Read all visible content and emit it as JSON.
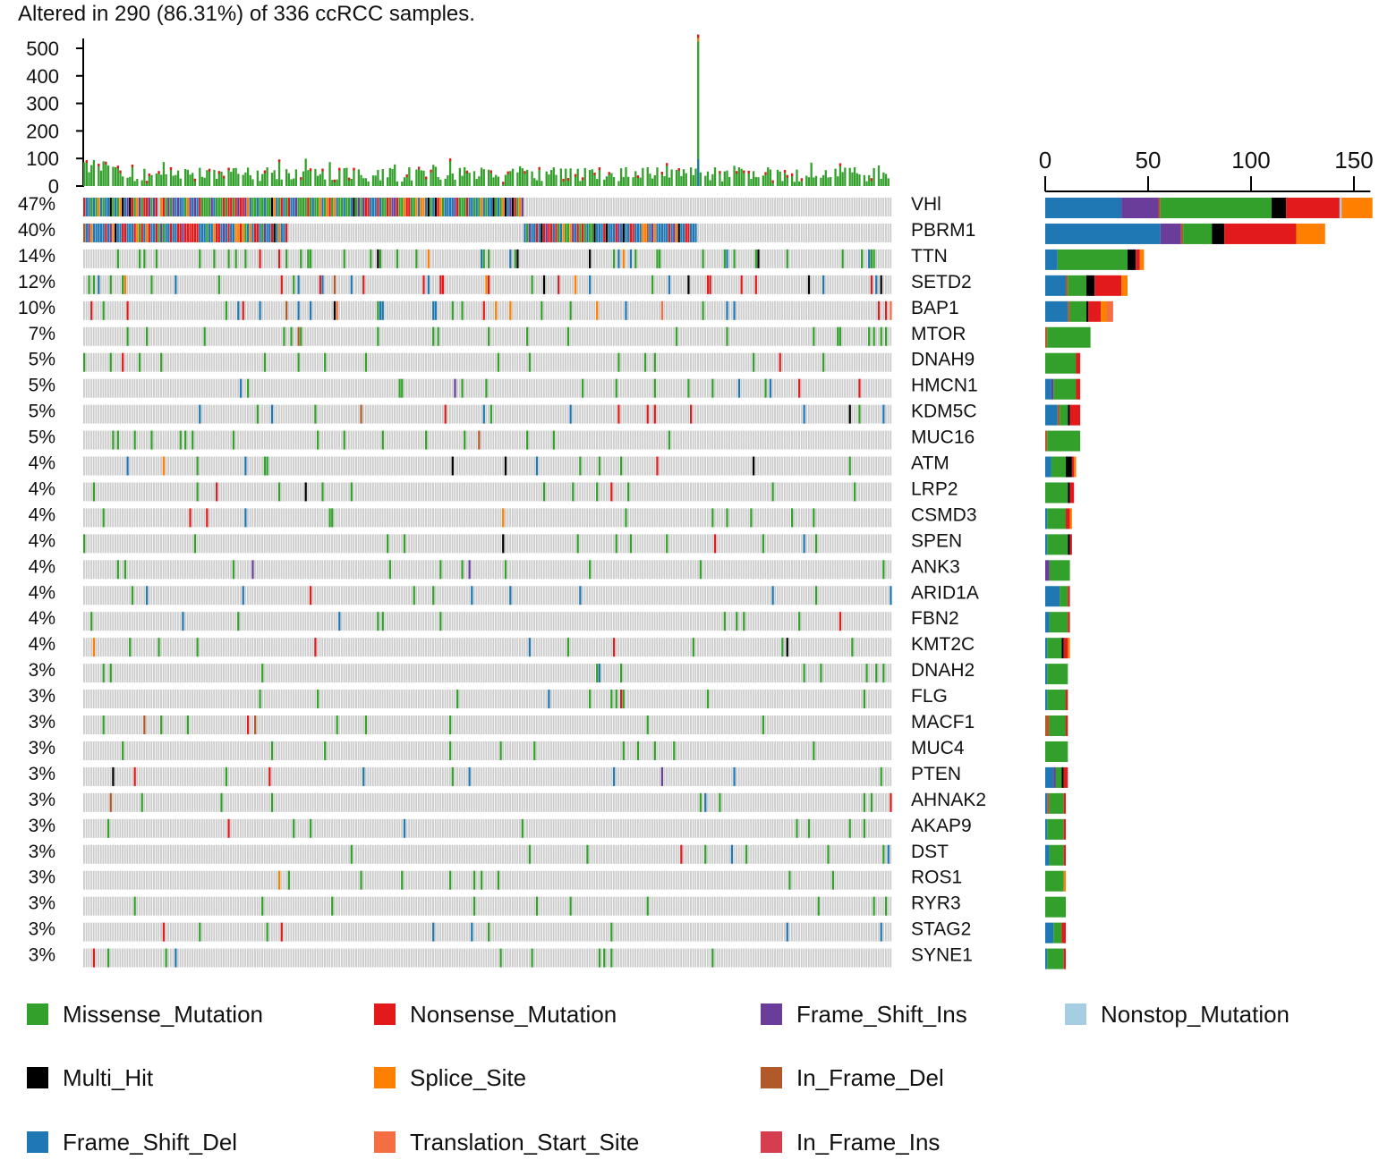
{
  "title": "Altered in 290 (86.31%) of 336 ccRCC samples.",
  "colors": {
    "Missense_Mutation": "#33a02c",
    "Nonsense_Mutation": "#e31a1c",
    "Frame_Shift_Ins": "#6a3d9a",
    "Nonstop_Mutation": "#a6cee3",
    "Multi_Hit": "#000000",
    "Splice_Site": "#ff7f00",
    "In_Frame_Del": "#b15928",
    "Frame_Shift_Del": "#1f78b4",
    "Translation_Start_Site": "#f46d43",
    "In_Frame_Ins": "#d53e4f",
    "background": "#cccccc"
  },
  "legend": [
    {
      "label": "Missense_Mutation",
      "key": "Missense_Mutation"
    },
    {
      "label": "Nonsense_Mutation",
      "key": "Nonsense_Mutation"
    },
    {
      "label": "Frame_Shift_Ins",
      "key": "Frame_Shift_Ins"
    },
    {
      "label": "Nonstop_Mutation",
      "key": "Nonstop_Mutation"
    },
    {
      "label": "Multi_Hit",
      "key": "Multi_Hit"
    },
    {
      "label": "Splice_Site",
      "key": "Splice_Site"
    },
    {
      "label": "In_Frame_Del",
      "key": "In_Frame_Del"
    },
    {
      "label": "",
      "key": ""
    },
    {
      "label": "Frame_Shift_Del",
      "key": "Frame_Shift_Del"
    },
    {
      "label": "Translation_Start_Site",
      "key": "Translation_Start_Site"
    },
    {
      "label": "In_Frame_Ins",
      "key": "In_Frame_Ins"
    }
  ],
  "chart_data": {
    "type": "heatmap",
    "title": "Altered in 290 (86.31%) of 336 ccRCC samples.",
    "n_samples": 336,
    "altered_samples": 290,
    "tmb_axis": {
      "ticks": [
        0,
        100,
        200,
        300,
        400,
        500
      ],
      "ylim": [
        0,
        550
      ]
    },
    "tmb_peak": {
      "sample": 255,
      "value": 550
    },
    "count_axis": {
      "ticks": [
        0,
        50,
        100,
        150
      ],
      "xlim": [
        0,
        158
      ]
    },
    "genes": [
      {
        "name": "VHl",
        "pct": "47%",
        "counts": {
          "Frame_Shift_Del": 37,
          "Frame_Shift_Ins": 18,
          "In_Frame_Del": 1,
          "Missense_Mutation": 54,
          "Multi_Hit": 7,
          "Nonsense_Mutation": 26,
          "Nonstop_Mutation": 1,
          "Splice_Site": 15
        }
      },
      {
        "name": "PBRM1",
        "pct": "40%",
        "counts": {
          "Frame_Shift_Del": 56,
          "Frame_Shift_Ins": 10,
          "In_Frame_Del": 1,
          "Missense_Mutation": 14,
          "Multi_Hit": 6,
          "Nonsense_Mutation": 35,
          "Splice_Site": 14
        }
      },
      {
        "name": "TTN",
        "pct": "14%",
        "counts": {
          "Frame_Shift_Del": 6,
          "Missense_Mutation": 34,
          "Multi_Hit": 4,
          "Nonsense_Mutation": 2,
          "Splice_Site": 2
        }
      },
      {
        "name": "SETD2",
        "pct": "12%",
        "counts": {
          "Frame_Shift_Del": 10,
          "In_Frame_Del": 1,
          "Missense_Mutation": 9,
          "Multi_Hit": 4,
          "Nonsense_Mutation": 13,
          "Splice_Site": 3
        }
      },
      {
        "name": "BAP1",
        "pct": "10%",
        "counts": {
          "Frame_Shift_Del": 11,
          "In_Frame_Del": 1,
          "Missense_Mutation": 8,
          "Multi_Hit": 1,
          "Nonsense_Mutation": 6,
          "Splice_Site": 3,
          "Translation_Start_Site": 3
        }
      },
      {
        "name": "MTOR",
        "pct": "7%",
        "counts": {
          "In_Frame_Del": 1,
          "Missense_Mutation": 21
        }
      },
      {
        "name": "DNAH9",
        "pct": "5%",
        "counts": {
          "Missense_Mutation": 15,
          "Nonsense_Mutation": 2
        }
      },
      {
        "name": "HMCN1",
        "pct": "5%",
        "counts": {
          "Frame_Shift_Del": 3,
          "Frame_Shift_Ins": 1,
          "Missense_Mutation": 11,
          "Nonsense_Mutation": 2
        }
      },
      {
        "name": "KDM5C",
        "pct": "5%",
        "counts": {
          "Frame_Shift_Del": 6,
          "In_Frame_Del": 1,
          "Missense_Mutation": 4,
          "Multi_Hit": 1,
          "Nonsense_Mutation": 5
        }
      },
      {
        "name": "MUC16",
        "pct": "5%",
        "counts": {
          "In_Frame_Del": 1,
          "Missense_Mutation": 16
        }
      },
      {
        "name": "ATM",
        "pct": "4%",
        "counts": {
          "Frame_Shift_Del": 3,
          "Missense_Mutation": 7,
          "Multi_Hit": 3,
          "Nonsense_Mutation": 1,
          "Splice_Site": 1
        }
      },
      {
        "name": "LRP2",
        "pct": "4%",
        "counts": {
          "Missense_Mutation": 11,
          "Multi_Hit": 1,
          "Nonsense_Mutation": 2
        }
      },
      {
        "name": "CSMD3",
        "pct": "4%",
        "counts": {
          "Frame_Shift_Del": 1,
          "Missense_Mutation": 9,
          "Nonsense_Mutation": 2,
          "Splice_Site": 1
        }
      },
      {
        "name": "SPEN",
        "pct": "4%",
        "counts": {
          "Frame_Shift_Del": 1,
          "Missense_Mutation": 10,
          "Multi_Hit": 1,
          "Nonsense_Mutation": 1
        }
      },
      {
        "name": "ANK3",
        "pct": "4%",
        "counts": {
          "Frame_Shift_Ins": 2,
          "Missense_Mutation": 10
        }
      },
      {
        "name": "ARID1A",
        "pct": "4%",
        "counts": {
          "Frame_Shift_Del": 7,
          "Missense_Mutation": 4,
          "Nonsense_Mutation": 1
        }
      },
      {
        "name": "FBN2",
        "pct": "4%",
        "counts": {
          "Frame_Shift_Del": 2,
          "Missense_Mutation": 9,
          "Nonsense_Mutation": 1
        }
      },
      {
        "name": "KMT2C",
        "pct": "4%",
        "counts": {
          "Frame_Shift_Del": 1,
          "Missense_Mutation": 7,
          "Multi_Hit": 1,
          "Nonsense_Mutation": 2,
          "Splice_Site": 1
        }
      },
      {
        "name": "DNAH2",
        "pct": "3%",
        "counts": {
          "Frame_Shift_Del": 1,
          "Missense_Mutation": 10
        }
      },
      {
        "name": "FLG",
        "pct": "3%",
        "counts": {
          "Frame_Shift_Del": 1,
          "Missense_Mutation": 9,
          "Nonsense_Mutation": 1
        }
      },
      {
        "name": "MACF1",
        "pct": "3%",
        "counts": {
          "In_Frame_Del": 2,
          "Missense_Mutation": 8,
          "Nonsense_Mutation": 1
        }
      },
      {
        "name": "MUC4",
        "pct": "3%",
        "counts": {
          "Missense_Mutation": 11
        }
      },
      {
        "name": "PTEN",
        "pct": "3%",
        "counts": {
          "Frame_Shift_Del": 4,
          "Frame_Shift_Ins": 1,
          "Missense_Mutation": 3,
          "Multi_Hit": 1,
          "Nonsense_Mutation": 2
        }
      },
      {
        "name": "AHNAK2",
        "pct": "3%",
        "counts": {
          "Frame_Shift_Del": 1,
          "In_Frame_Del": 1,
          "Missense_Mutation": 7,
          "Nonsense_Mutation": 1
        }
      },
      {
        "name": "AKAP9",
        "pct": "3%",
        "counts": {
          "Frame_Shift_Del": 1,
          "Missense_Mutation": 8,
          "Nonsense_Mutation": 1
        }
      },
      {
        "name": "DST",
        "pct": "3%",
        "counts": {
          "Frame_Shift_Del": 2,
          "Missense_Mutation": 7,
          "Nonsense_Mutation": 1
        }
      },
      {
        "name": "ROS1",
        "pct": "3%",
        "counts": {
          "Missense_Mutation": 9,
          "Splice_Site": 1
        }
      },
      {
        "name": "RYR3",
        "pct": "3%",
        "counts": {
          "Missense_Mutation": 10
        }
      },
      {
        "name": "STAG2",
        "pct": "3%",
        "counts": {
          "Frame_Shift_Del": 4,
          "Missense_Mutation": 4,
          "Nonsense_Mutation": 2
        }
      },
      {
        "name": "SYNE1",
        "pct": "3%",
        "counts": {
          "Frame_Shift_Del": 1,
          "Missense_Mutation": 8,
          "Nonsense_Mutation": 1
        }
      }
    ]
  }
}
